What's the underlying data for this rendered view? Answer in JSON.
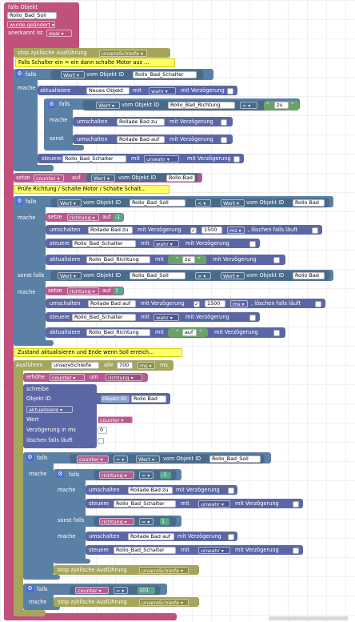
{
  "trigger": {
    "title": "falls Objekt",
    "object_id": "Rollo_Bad_Soll",
    "changed": "wurde geändert",
    "ack_label": "anerkannt ist",
    "ack_value": "egal"
  },
  "stop_loop_1": {
    "label": "stop zyklische Ausführung",
    "loop": "unsereSchleife"
  },
  "comment_1": "Falls Schalter ein = ein dann schalte Motor aus ...",
  "if1": {
    "falls": "falls",
    "mache": "mache",
    "value_dd": "Wert",
    "of_obj": "vom Objekt ID",
    "obj": "Rollo_Bad_Schalter",
    "update": {
      "label": "aktualisiere",
      "obj": "Neues Objekt",
      "with": "mit",
      "val": "wahr",
      "delay": "mit Verzögerung"
    },
    "inner": {
      "falls": "falls",
      "mache": "mache",
      "sonst": "sonst",
      "value_dd": "Wert",
      "of_obj": "vom Objekt ID",
      "obj": "Rollo_Bad_Richtung",
      "op": "=",
      "cmp": "zu",
      "then": {
        "label": "umschalten",
        "obj": "Rollade Bad zu",
        "delay": "mit Verzögerung"
      },
      "else": {
        "label": "umschalten",
        "obj": "Rollade Bad auf",
        "delay": "mit Verzögerung"
      }
    },
    "control": {
      "label": "steuere",
      "obj": "Rollo_Bad_Schalter",
      "with": "mit",
      "val": "unwahr",
      "delay": "mit Verzögerung"
    }
  },
  "set_counter": {
    "label": "setze",
    "var": "counter",
    "on": "auf",
    "value_dd": "Wert",
    "of_obj": "vom Objekt ID",
    "obj": "Rollo Bad"
  },
  "comment_2": "Prüfe Richtung / Schalte Motor / Schalte Schalt...",
  "if2": {
    "falls": "falls",
    "mache": "mache",
    "sonst_falls": "sonst falls",
    "cond1": {
      "value_dd": "Wert",
      "of_obj": "vom Objekt ID",
      "obj": "Rollo_Bad_Soll",
      "op": "<",
      "value_dd2": "Wert",
      "of_obj2": "vom Objekt ID",
      "obj2": "Rollo Bad"
    },
    "set_dir": {
      "label": "setze",
      "var": "richtung",
      "on": "auf",
      "val": "-1"
    },
    "switch": {
      "label": "umschalten",
      "obj": "Rollade Bad zu",
      "delay": "mit Verzögerung",
      "ms_val": "1500",
      "unit": "ms",
      "clear": ", löschen falls läuft"
    },
    "control": {
      "label": "steuere",
      "obj": "Rollo_Bad_Schalter",
      "with": "mit",
      "val": "wahr",
      "delay": "mit Verzögerung"
    },
    "update": {
      "label": "aktualisiere",
      "obj": "Rollo_Bad_Richtung",
      "with": "mit",
      "val": "zu",
      "delay": "mit Verzögerung"
    },
    "cond2": {
      "value_dd": "Wert",
      "of_obj": "vom Objekt ID",
      "obj": "Rollo_Bad_Soll",
      "op": ">",
      "value_dd2": "Wert",
      "of_obj2": "vom Objekt ID",
      "obj2": "Rollo Bad"
    },
    "set_dir2": {
      "label": "setze",
      "var": "richtung",
      "on": "auf",
      "val": "1"
    },
    "switch2": {
      "label": "umschalten",
      "obj": "Rollade Bad auf",
      "delay": "mit Verzögerung",
      "ms_val": "1500",
      "unit": "ms",
      "clear": ", löschen falls läuft"
    },
    "control2": {
      "label": "steuere",
      "obj": "Rollo_Bad_Schalter",
      "with": "mit",
      "val": "wahr",
      "delay": "mit Verzögerung"
    },
    "update2": {
      "label": "aktualisiere",
      "obj": "Rollo_Bad_Richtung",
      "with": "mit",
      "val": "auf",
      "delay": "mit Verzögerung"
    }
  },
  "comment_3": "Zustand aktualisieren und Ende wenn Soll erreich...",
  "loop": {
    "label": "Ausführen",
    "loop": "unsereSchleife",
    "every": "alle",
    "ms_val": "700",
    "unit_dd": "ms",
    "unit_txt": "ms",
    "inc": {
      "label": "erhöhe",
      "var": "counter",
      "by": "um",
      "val": "richtung"
    },
    "write": {
      "label": "schreibe",
      "obj_label": "Objekt ID",
      "obj_ph": "Objekt ID",
      "obj": "Rollo Bad",
      "mode": "aktualisiere",
      "wert": "Wert",
      "wert_val": "counter",
      "delay": "Verzögerung in ms",
      "delay_val": "0",
      "clear": "löschen falls läuft"
    },
    "if3": {
      "falls": "falls",
      "mache": "mache",
      "var": "counter",
      "op": "=",
      "value_dd": "Wert",
      "of_obj": "vom Objekt ID",
      "obj": "Rollo_Bad_Soll",
      "inner": {
        "falls": "falls",
        "mache": "mache",
        "sonst_falls": "sonst falls",
        "var1": "richtung",
        "op1": "=",
        "val1": "-1",
        "then1": {
          "label": "umschalten",
          "obj": "Rollade Bad zu",
          "delay": "mit Verzögerung"
        },
        "ctrl1": {
          "label": "steuere",
          "obj": "Rollo_Bad_Schalter",
          "with": "mit",
          "val": "unwahr",
          "delay": "mit Verzögerung"
        },
        "var2": "richtung",
        "op2": "=",
        "val2": "1",
        "then2": {
          "label": "umschalten",
          "obj": "Rollade Bad auf",
          "delay": "mit Verzögerung"
        },
        "ctrl2": {
          "label": "steuere",
          "obj": "Rollo_Bad_Schalter",
          "with": "mit",
          "val": "unwahr",
          "delay": "mit Verzögerung"
        }
      },
      "stop": {
        "label": "stop zyklische Ausführung",
        "loop": "unsereSchleife"
      }
    },
    "if4": {
      "falls": "falls",
      "mache": "mache",
      "var": "counter",
      "op": "=",
      "val": "101",
      "stop": {
        "label": "stop zyklische Ausführung",
        "loop": "unsereSchleife"
      }
    }
  },
  "icons": {
    "gear": "gear-icon",
    "quote": "quote-icon",
    "dropdown": "chevron-down-icon"
  },
  "colors": {
    "trigger": "#c0507c",
    "loop_ctrl": "#a5a55c",
    "logic": "#5b80a5",
    "variable": "#b85a8f",
    "text": "#6aa36a",
    "comment": "#ffff66"
  }
}
